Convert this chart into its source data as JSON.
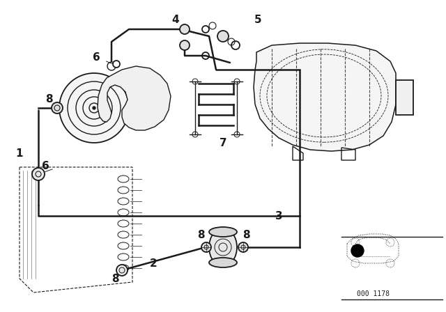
{
  "bg_color": "#ffffff",
  "line_color": "#1a1a1a",
  "part_number": "000 1178",
  "figsize": [
    6.4,
    4.48
  ],
  "dpi": 100
}
